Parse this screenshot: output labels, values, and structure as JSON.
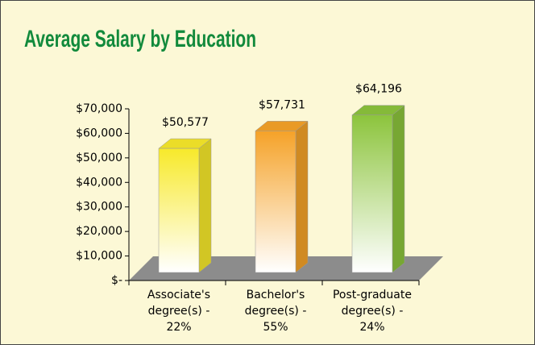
{
  "chart_data": {
    "type": "bar3d",
    "title": "Average Salary by Education",
    "categories": [
      [
        "Associate's",
        "degree(s) -",
        "22%"
      ],
      [
        "Bachelor's",
        "degree(s) -",
        "55%"
      ],
      [
        "Post-graduate",
        "degree(s) -",
        "24%"
      ]
    ],
    "values": [
      50577,
      57731,
      64196
    ],
    "value_labels": [
      "$50,577",
      "$57,731",
      "$64,196"
    ],
    "colors": [
      "#f7e92a",
      "#f5a228",
      "#8cc43c"
    ],
    "ylim": [
      0,
      70000
    ],
    "yticks": [
      {
        "value": 0,
        "label": "$-"
      },
      {
        "value": 10000,
        "label": "$10,000"
      },
      {
        "value": 20000,
        "label": "$20,000"
      },
      {
        "value": 30000,
        "label": "$30,000"
      },
      {
        "value": 40000,
        "label": "$40,000"
      },
      {
        "value": 50000,
        "label": "$50,000"
      },
      {
        "value": 60000,
        "label": "$60,000"
      },
      {
        "value": 70000,
        "label": "$70,000"
      }
    ]
  }
}
